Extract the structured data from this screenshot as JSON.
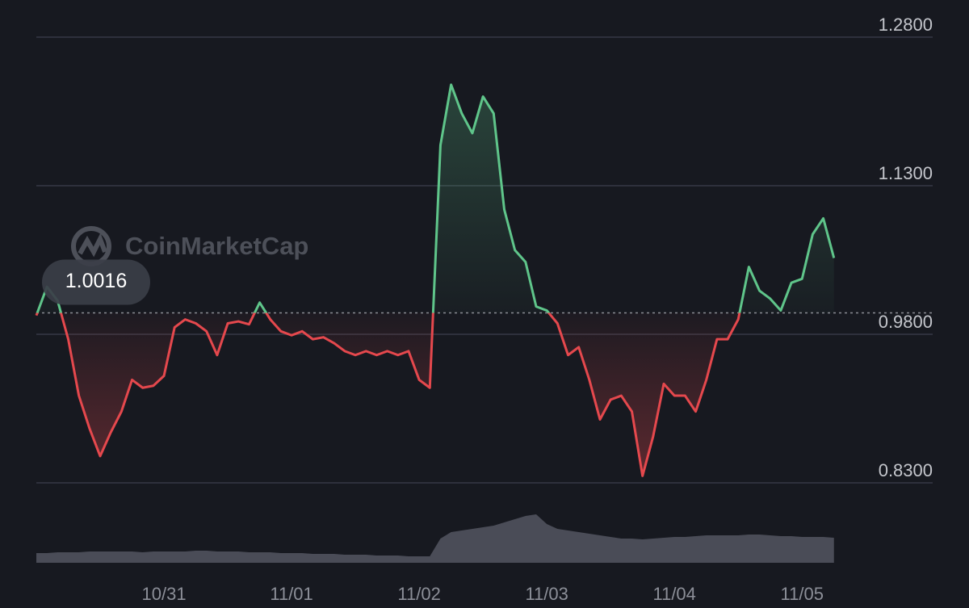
{
  "chart_data": {
    "type": "line",
    "watermark": "CoinMarketCap",
    "reference": 1.0016,
    "categories": [
      null,
      null,
      null,
      null,
      null,
      null,
      null,
      null,
      null,
      null,
      null,
      null,
      "10/31",
      null,
      null,
      null,
      null,
      null,
      null,
      null,
      null,
      null,
      null,
      null,
      "11/01",
      null,
      null,
      null,
      null,
      null,
      null,
      null,
      null,
      null,
      null,
      null,
      "11/02",
      null,
      null,
      null,
      null,
      null,
      null,
      null,
      null,
      null,
      null,
      null,
      "11/03",
      null,
      null,
      null,
      null,
      null,
      null,
      null,
      null,
      null,
      null,
      null,
      "11/04",
      null,
      null,
      null,
      null,
      null,
      null,
      null,
      null,
      null,
      null,
      null,
      "11/05",
      null,
      null,
      null
    ],
    "values": [
      0.999,
      1.028,
      1.014,
      0.975,
      0.918,
      0.885,
      0.857,
      0.881,
      0.902,
      0.934,
      0.926,
      0.928,
      0.938,
      0.987,
      0.995,
      0.991,
      0.983,
      0.959,
      0.991,
      0.993,
      0.99,
      1.012,
      0.995,
      0.983,
      0.979,
      0.983,
      0.975,
      0.977,
      0.971,
      0.963,
      0.959,
      0.963,
      0.959,
      0.963,
      0.959,
      0.963,
      0.934,
      0.926,
      1.171,
      1.232,
      1.203,
      1.183,
      1.22,
      1.203,
      1.106,
      1.065,
      1.053,
      1.008,
      1.004,
      0.991,
      0.959,
      0.967,
      0.934,
      0.894,
      0.914,
      0.918,
      0.902,
      0.837,
      0.877,
      0.93,
      0.918,
      0.918,
      0.902,
      0.934,
      0.975,
      0.975,
      0.995,
      1.048,
      1.024,
      1.016,
      1.004,
      1.032,
      1.036,
      1.081,
      1.097,
      1.057
    ],
    "volume": [
      12,
      12,
      13,
      13,
      13,
      14,
      14,
      14,
      14,
      14,
      13,
      14,
      14,
      14,
      14,
      15,
      15,
      14,
      14,
      14,
      13,
      13,
      13,
      12,
      12,
      12,
      11,
      11,
      11,
      10,
      10,
      10,
      9,
      9,
      9,
      8,
      8,
      8,
      30,
      38,
      40,
      42,
      44,
      46,
      50,
      54,
      58,
      60,
      48,
      42,
      40,
      38,
      36,
      34,
      32,
      30,
      30,
      29,
      30,
      31,
      32,
      32,
      33,
      34,
      34,
      34,
      34,
      35,
      35,
      34,
      33,
      33,
      32,
      32,
      32,
      31
    ],
    "up_color": "#5fc58a",
    "down_color": "#e5484d",
    "volume_color": "#4a4c57",
    "ylim": [
      0.83,
      1.28
    ],
    "yticks": [
      {
        "value": 1.28,
        "label": "1.2800"
      },
      {
        "value": 1.13,
        "label": "1.1300"
      },
      {
        "value": 0.98,
        "label": "0.9800"
      },
      {
        "value": 0.83,
        "label": "0.8300"
      }
    ],
    "grid": true
  }
}
